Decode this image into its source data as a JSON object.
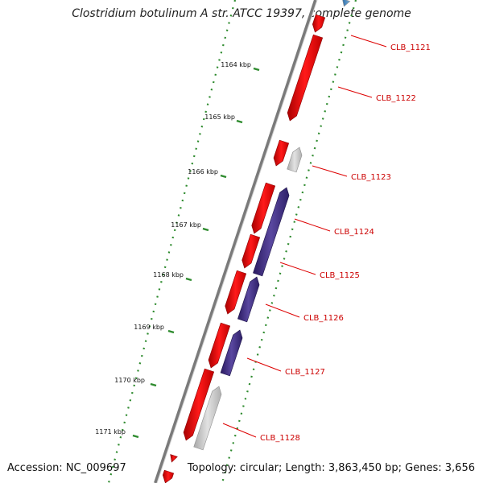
{
  "title": "Clostridium botulinum A str. ATCC 19397, complete genome",
  "footer": {
    "accession": "Accession: NC_009697",
    "summary": "Topology: circular; Length: 3,863,450 bp; Genes: 3,656"
  },
  "colors": {
    "backbone": "#7a7a7a",
    "dots": "#2e8b2e",
    "forward_cds": "#e00000",
    "reverse_cds": "#3c2a7a",
    "gray_cds": "#bcbcbc",
    "blue_cds": "#4a86c0",
    "label": "#cc0000"
  },
  "kbp_ticks": [
    "1164 kbp",
    "1165 kbp",
    "1166 kbp",
    "1167 kbp",
    "1168 kbp",
    "1169 kbp",
    "1170 kbp",
    "1171 kbp"
  ],
  "gene_labels": [
    "CLB_1121",
    "CLB_1122",
    "CLB_1123",
    "CLB_1124",
    "CLB_1125",
    "CLB_1126",
    "CLB_1127",
    "CLB_1128"
  ]
}
